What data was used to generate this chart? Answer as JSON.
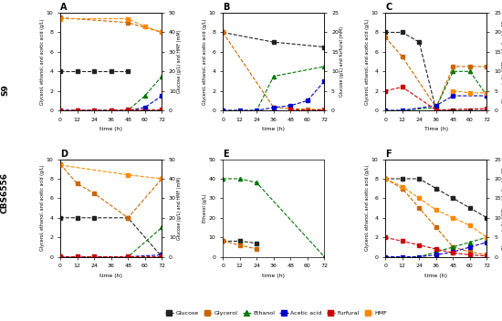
{
  "panels": {
    "A": {
      "title": "A",
      "left_ylabel": "Glycerol, ethanol, and acetic acid (g/L)",
      "right_ylabel": "Glucose (g/L) and HMF (mM)",
      "xlabel": "time (h)",
      "left_ylim": [
        0,
        10
      ],
      "right_ylim": [
        0,
        50
      ],
      "series": [
        {
          "key": "glucose",
          "x": [
            0,
            12,
            24,
            36,
            48
          ],
          "y": [
            4,
            4,
            4,
            4,
            4
          ],
          "right": false,
          "color": "#222222",
          "marker": "s"
        },
        {
          "key": "glycerol",
          "x": [
            0,
            48,
            72
          ],
          "y": [
            9.5,
            9.0,
            8.0
          ],
          "right": false,
          "color": "#cc6600",
          "marker": "s"
        },
        {
          "key": "ethanol",
          "x": [
            0,
            12,
            24,
            36,
            48,
            60,
            72
          ],
          "y": [
            0,
            0,
            0,
            0,
            0,
            1.5,
            3.5
          ],
          "right": false,
          "color": "#007700",
          "marker": "^"
        },
        {
          "key": "acetic",
          "x": [
            0,
            12,
            24,
            36,
            48,
            60,
            72
          ],
          "y": [
            0,
            0,
            0,
            0,
            0,
            0.3,
            1.5
          ],
          "right": false,
          "color": "#0000cc",
          "marker": "s"
        },
        {
          "key": "furfural",
          "x": [
            0,
            12,
            24,
            36,
            48,
            72
          ],
          "y": [
            0.1,
            0.1,
            0.1,
            0.1,
            0.3,
            0.3
          ],
          "right": true,
          "color": "#cc0000",
          "marker": "s"
        },
        {
          "key": "hmf",
          "x": [
            0,
            48,
            60,
            72
          ],
          "y": [
            47,
            47,
            43,
            40
          ],
          "right": true,
          "color": "#ff8800",
          "marker": "s"
        }
      ]
    },
    "B": {
      "title": "B",
      "left_ylabel": "Glycerol, ethanol, and acetic acid (g/L)",
      "right_ylabel": "Glucose (g/L) and furfural (mM)",
      "xlabel": "time (h)",
      "left_ylim": [
        0,
        10
      ],
      "right_ylim": [
        0,
        25
      ],
      "series": [
        {
          "key": "glucose",
          "x": [
            0,
            36,
            72
          ],
          "y": [
            8,
            7,
            6.5
          ],
          "right": false,
          "color": "#222222",
          "marker": "s"
        },
        {
          "key": "glycerol",
          "x": [
            0,
            36,
            60,
            72
          ],
          "y": [
            8.0,
            0.3,
            0.1,
            0.1
          ],
          "right": false,
          "color": "#cc6600",
          "marker": "s"
        },
        {
          "key": "ethanol",
          "x": [
            0,
            12,
            24,
            36,
            72
          ],
          "y": [
            0,
            0,
            0,
            3.5,
            4.5
          ],
          "right": false,
          "color": "#007700",
          "marker": "^"
        },
        {
          "key": "acetic",
          "x": [
            0,
            12,
            24,
            36,
            48,
            60,
            72
          ],
          "y": [
            0,
            0,
            0,
            0.3,
            0.5,
            1.0,
            3.0
          ],
          "right": false,
          "color": "#0000cc",
          "marker": "s"
        },
        {
          "key": "furfural",
          "x": [
            48,
            72
          ],
          "y": [
            0.2,
            0.1
          ],
          "right": true,
          "color": "#cc0000",
          "marker": "s"
        },
        {
          "key": "hmf",
          "x": [],
          "y": [],
          "right": true,
          "color": "#ff8800",
          "marker": "s"
        }
      ]
    },
    "C": {
      "title": "C",
      "left_ylabel": "Glycerol, ethanol, and acetic acid (g/L)",
      "right_ylabel": "Glucose (g/L), HMF and furfural (mM)",
      "xlabel": "Time (h)",
      "left_ylim": [
        0,
        10
      ],
      "right_ylim": [
        0,
        25
      ],
      "series": [
        {
          "key": "glucose",
          "x": [
            0,
            12,
            24,
            36,
            48,
            60,
            72
          ],
          "y": [
            8,
            8,
            7,
            0,
            0,
            0,
            0
          ],
          "right": false,
          "color": "#222222",
          "marker": "s"
        },
        {
          "key": "glycerol",
          "x": [
            0,
            12,
            36,
            48,
            60,
            72
          ],
          "y": [
            7.5,
            5.5,
            0.3,
            4.5,
            4.5,
            4.5
          ],
          "right": false,
          "color": "#cc6600",
          "marker": "s"
        },
        {
          "key": "ethanol",
          "x": [
            0,
            12,
            36,
            48,
            60,
            72
          ],
          "y": [
            0,
            0,
            0.3,
            4.0,
            4.0,
            1.5
          ],
          "right": false,
          "color": "#007700",
          "marker": "^"
        },
        {
          "key": "acetic",
          "x": [
            0,
            12,
            36,
            48,
            72
          ],
          "y": [
            0,
            0,
            0.5,
            1.5,
            1.5
          ],
          "right": false,
          "color": "#0000cc",
          "marker": "s"
        },
        {
          "key": "furfural",
          "x": [
            0,
            12,
            36,
            72
          ],
          "y": [
            5,
            6,
            0.1,
            0.5
          ],
          "right": true,
          "color": "#cc0000",
          "marker": "s"
        },
        {
          "key": "hmf",
          "x": [
            48,
            60,
            72
          ],
          "y": [
            5,
            4.5,
            4.5
          ],
          "right": true,
          "color": "#ff8800",
          "marker": "s"
        }
      ]
    },
    "D": {
      "title": "D",
      "left_ylabel": "Glycerol, ethanol, and acetic acid (g/L)",
      "right_ylabel": "Glucose (g/L) and HMF (mM)",
      "xlabel": "time (h)",
      "left_ylim": [
        0,
        10
      ],
      "right_ylim": [
        0,
        50
      ],
      "series": [
        {
          "key": "glucose",
          "x": [
            0,
            12,
            24,
            48,
            72
          ],
          "y": [
            4,
            4,
            4,
            4,
            0
          ],
          "right": false,
          "color": "#222222",
          "marker": "s"
        },
        {
          "key": "glycerol",
          "x": [
            0,
            12,
            24,
            48,
            72
          ],
          "y": [
            9.5,
            7.5,
            6.5,
            4.0,
            8.0
          ],
          "right": false,
          "color": "#cc6600",
          "marker": "s"
        },
        {
          "key": "ethanol",
          "x": [
            0,
            12,
            24,
            48,
            72
          ],
          "y": [
            0,
            0,
            0,
            0,
            3.0
          ],
          "right": false,
          "color": "#007700",
          "marker": "^"
        },
        {
          "key": "acetic",
          "x": [
            0,
            12,
            24,
            48,
            72
          ],
          "y": [
            0,
            0,
            0,
            0,
            0.2
          ],
          "right": false,
          "color": "#0000cc",
          "marker": "s"
        },
        {
          "key": "furfural",
          "x": [
            0,
            12,
            24,
            48,
            72
          ],
          "y": [
            0.1,
            0.1,
            0.1,
            0.1,
            0.1
          ],
          "right": true,
          "color": "#cc0000",
          "marker": "s"
        },
        {
          "key": "hmf",
          "x": [
            0,
            48,
            72
          ],
          "y": [
            47,
            42,
            40
          ],
          "right": true,
          "color": "#ff8800",
          "marker": "s"
        }
      ]
    },
    "E": {
      "title": "E",
      "left_ylabel": "Ethanol (g/L)",
      "right_ylabel": null,
      "xlabel": "time (h)",
      "left_ylim": [
        0,
        50
      ],
      "right_ylim": null,
      "series": [
        {
          "key": "glucose",
          "x": [
            0,
            12,
            24
          ],
          "y": [
            8,
            8,
            7
          ],
          "right": false,
          "color": "#222222",
          "marker": "s"
        },
        {
          "key": "glycerol",
          "x": [
            0,
            12,
            24
          ],
          "y": [
            8,
            6,
            4
          ],
          "right": false,
          "color": "#cc6600",
          "marker": "s"
        },
        {
          "key": "ethanol",
          "x": [
            0,
            12,
            24,
            72
          ],
          "y": [
            40,
            40,
            38,
            0
          ],
          "right": false,
          "color": "#007700",
          "marker": "^"
        },
        {
          "key": "acetic",
          "x": [],
          "y": [],
          "right": false,
          "color": "#0000cc",
          "marker": "s"
        },
        {
          "key": "furfural",
          "x": [],
          "y": [],
          "right": false,
          "color": "#cc0000",
          "marker": "s"
        },
        {
          "key": "hmf",
          "x": [],
          "y": [],
          "right": false,
          "color": "#ff8800",
          "marker": "s"
        }
      ]
    },
    "F": {
      "title": "F",
      "left_ylabel": "Glycerol, ethanol, and acetic acid (g/L)",
      "right_ylabel": "Glucose (g/L), HMF and furfural (mM)",
      "xlabel": "time (h)",
      "left_ylim": [
        0,
        10
      ],
      "right_ylim": [
        0,
        25
      ],
      "series": [
        {
          "key": "glucose",
          "x": [
            0,
            12,
            24,
            36,
            48,
            60,
            72
          ],
          "y": [
            8,
            8,
            8,
            7,
            6,
            5,
            4
          ],
          "right": false,
          "color": "#222222",
          "marker": "s"
        },
        {
          "key": "glycerol",
          "x": [
            0,
            12,
            24,
            36,
            48,
            60,
            72
          ],
          "y": [
            8,
            7,
            5,
            3,
            1,
            0.5,
            0.2
          ],
          "right": false,
          "color": "#cc6600",
          "marker": "s"
        },
        {
          "key": "ethanol",
          "x": [
            0,
            12,
            24,
            36,
            48,
            60,
            72
          ],
          "y": [
            0,
            0,
            0,
            0.5,
            1,
            1.5,
            2
          ],
          "right": false,
          "color": "#007700",
          "marker": "^"
        },
        {
          "key": "acetic",
          "x": [
            0,
            12,
            24,
            36,
            48,
            60,
            72
          ],
          "y": [
            0,
            0,
            0,
            0.2,
            0.5,
            1,
            1.5
          ],
          "right": false,
          "color": "#0000cc",
          "marker": "s"
        },
        {
          "key": "furfural",
          "x": [
            0,
            12,
            24,
            36,
            48,
            60,
            72
          ],
          "y": [
            5,
            4,
            3,
            2,
            1,
            0.5,
            0.2
          ],
          "right": true,
          "color": "#cc0000",
          "marker": "s"
        },
        {
          "key": "hmf",
          "x": [
            0,
            12,
            24,
            36,
            48,
            60,
            72
          ],
          "y": [
            20,
            18,
            15,
            12,
            10,
            8,
            5
          ],
          "right": true,
          "color": "#ff8800",
          "marker": "s"
        }
      ]
    }
  },
  "legend_entries": [
    {
      "label": "Glucose",
      "color": "#222222",
      "marker": "s",
      "ls": "--"
    },
    {
      "label": "Glycerol",
      "color": "#cc6600",
      "marker": "s",
      "ls": "--"
    },
    {
      "label": "Ethanol",
      "color": "#007700",
      "marker": "^",
      "ls": "--"
    },
    {
      "label": "Acetic acid",
      "color": "#0000cc",
      "marker": "s",
      "ls": "--"
    },
    {
      "label": "Furfural",
      "color": "#cc0000",
      "marker": "s",
      "ls": "--"
    },
    {
      "label": "HMF",
      "color": "#ff8800",
      "marker": "s",
      "ls": "--"
    }
  ],
  "row_labels": [
    "S9",
    "CBS6556"
  ],
  "background_color": "#ffffff"
}
